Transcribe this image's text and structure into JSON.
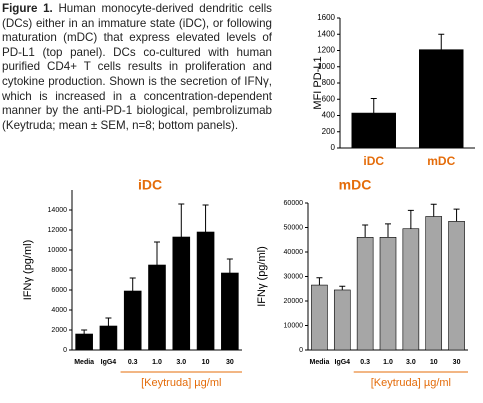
{
  "caption": {
    "label": "Figure 1.",
    "text": "Human monocyte-derived dendritic cells (DCs) either in an immature state (iDC), or following maturation (mDC) that express elevated levels of PD-L1 (top panel). DCs co-cultured with human purified CD4+ T cells results in proliferation and cytokine production. Shown is the secretion of IFNγ, which is increased in a concentration-dependent manner by the anti-PD-1 biological, pembrolizumab (Keytruda; mean ± SEM, n=8; bottom panels)."
  },
  "chart_data": [
    {
      "type": "bar",
      "ylabel": "MFI PD-L1",
      "categories": [
        "iDC",
        "mDC"
      ],
      "category_color": "#e46c0a",
      "values": [
        430,
        1210
      ],
      "errors": [
        180,
        190
      ],
      "color": "#000000",
      "ylim": [
        0,
        1600
      ],
      "yticks": [
        0,
        200,
        400,
        600,
        800,
        1000,
        1200,
        1400,
        1600
      ]
    },
    {
      "type": "bar",
      "title": "iDC",
      "ylabel": "IFNγ (pg/ml)",
      "xlabel": "[Keytruda] µg/ml",
      "categories": [
        "Media",
        "IgG4",
        "0.3",
        "1.0",
        "3.0",
        "10",
        "30"
      ],
      "category_color": "#000000",
      "values": [
        1600,
        2400,
        5900,
        8500,
        11300,
        11800,
        7700
      ],
      "errors": [
        400,
        800,
        1300,
        2300,
        3300,
        2700,
        1400
      ],
      "color": "#000000",
      "ylim": [
        0,
        16000
      ],
      "yticks": [
        0,
        2000,
        4000,
        6000,
        8000,
        10000,
        12000,
        14000
      ]
    },
    {
      "type": "bar",
      "title": "mDC",
      "ylabel": "IFNγ (pg/ml)",
      "xlabel": "[Keytruda] µg/ml",
      "categories": [
        "Media",
        "IgG4",
        "0.3",
        "1.0",
        "3.0",
        "10",
        "30"
      ],
      "category_color": "#000000",
      "values": [
        26500,
        24500,
        46000,
        46000,
        49500,
        54500,
        52500
      ],
      "errors": [
        3000,
        1500,
        5000,
        5500,
        7500,
        5000,
        5000
      ],
      "color": "#a6a6a6",
      "ylim": [
        0,
        60000
      ],
      "yticks": [
        0,
        10000,
        20000,
        30000,
        40000,
        50000,
        60000
      ]
    }
  ]
}
